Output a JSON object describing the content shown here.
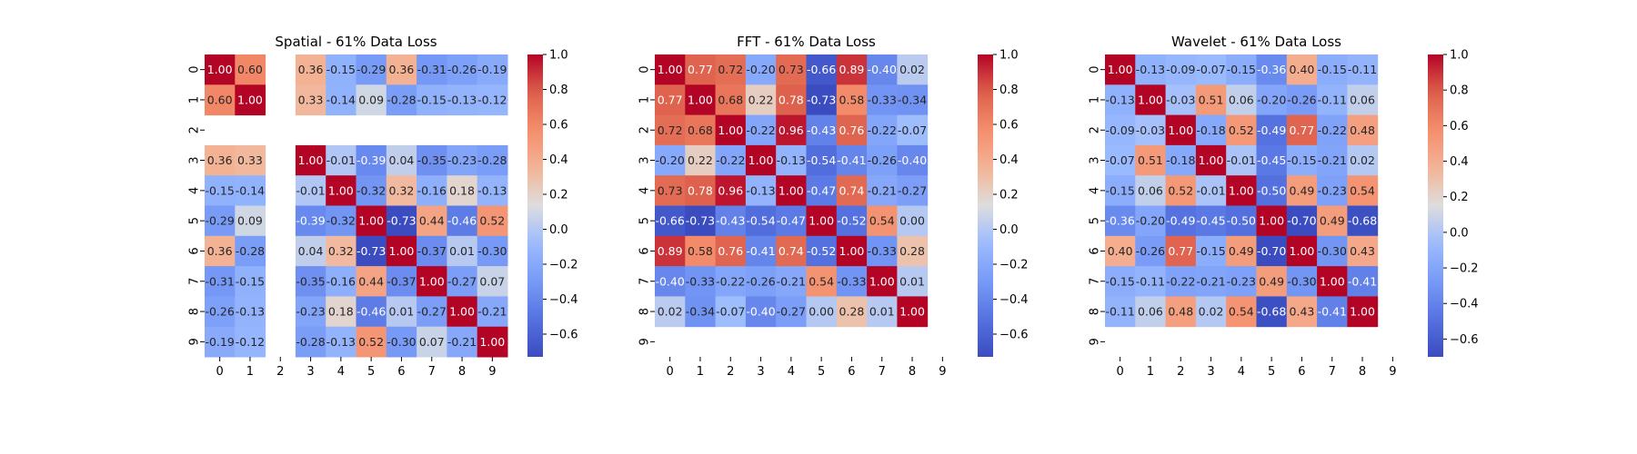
{
  "chart_data": [
    {
      "type": "heatmap",
      "title": "Spatial - 61% Data Loss",
      "x_ticks": [
        "0",
        "1",
        "2",
        "3",
        "4",
        "5",
        "6",
        "7",
        "8",
        "9"
      ],
      "y_ticks": [
        "0",
        "1",
        "2",
        "3",
        "4",
        "5",
        "6",
        "7",
        "8",
        "9"
      ],
      "colormap": "coolwarm",
      "vmin": -0.73,
      "vmax": 1.0,
      "colorbar_ticks": [
        1.0,
        0.8,
        0.6,
        0.4,
        0.2,
        0.0,
        -0.2,
        -0.4,
        -0.6
      ],
      "matrix": [
        [
          1.0,
          0.6,
          null,
          0.36,
          -0.15,
          -0.29,
          0.36,
          -0.31,
          -0.26,
          -0.19
        ],
        [
          0.6,
          1.0,
          null,
          0.33,
          -0.14,
          0.09,
          -0.28,
          -0.15,
          -0.13,
          -0.12
        ],
        [
          null,
          null,
          null,
          null,
          null,
          null,
          null,
          null,
          null,
          null
        ],
        [
          0.36,
          0.33,
          null,
          1.0,
          -0.01,
          -0.39,
          0.04,
          -0.35,
          -0.23,
          -0.28
        ],
        [
          -0.15,
          -0.14,
          null,
          -0.01,
          1.0,
          -0.32,
          0.32,
          -0.16,
          0.18,
          -0.13
        ],
        [
          -0.29,
          0.09,
          null,
          -0.39,
          -0.32,
          1.0,
          -0.73,
          0.44,
          -0.46,
          0.52
        ],
        [
          0.36,
          -0.28,
          null,
          0.04,
          0.32,
          -0.73,
          1.0,
          -0.37,
          0.01,
          -0.3
        ],
        [
          -0.31,
          -0.15,
          null,
          -0.35,
          -0.16,
          0.44,
          -0.37,
          1.0,
          -0.27,
          0.07
        ],
        [
          -0.26,
          -0.13,
          null,
          -0.23,
          0.18,
          -0.46,
          0.01,
          -0.27,
          1.0,
          -0.21
        ],
        [
          -0.19,
          -0.12,
          null,
          -0.28,
          -0.13,
          0.52,
          -0.3,
          0.07,
          -0.21,
          1.0
        ]
      ]
    },
    {
      "type": "heatmap",
      "title": "FFT - 61% Data Loss",
      "x_ticks": [
        "0",
        "1",
        "2",
        "3",
        "4",
        "5",
        "6",
        "7",
        "8",
        "9"
      ],
      "y_ticks": [
        "0",
        "1",
        "2",
        "3",
        "4",
        "5",
        "6",
        "7",
        "8",
        "9"
      ],
      "colormap": "coolwarm",
      "vmin": -0.73,
      "vmax": 1.0,
      "colorbar_ticks": [
        1.0,
        0.8,
        0.6,
        0.4,
        0.2,
        0.0,
        -0.2,
        -0.4,
        -0.6
      ],
      "matrix": [
        [
          1.0,
          0.77,
          0.72,
          -0.2,
          0.73,
          -0.66,
          0.89,
          -0.4,
          0.02,
          null
        ],
        [
          0.77,
          1.0,
          0.68,
          0.22,
          0.78,
          -0.73,
          0.58,
          -0.33,
          -0.34,
          null
        ],
        [
          0.72,
          0.68,
          1.0,
          -0.22,
          0.96,
          -0.43,
          0.76,
          -0.22,
          -0.07,
          null
        ],
        [
          -0.2,
          0.22,
          -0.22,
          1.0,
          -0.13,
          -0.54,
          -0.41,
          -0.26,
          -0.4,
          null
        ],
        [
          0.73,
          0.78,
          0.96,
          -0.13,
          1.0,
          -0.47,
          0.74,
          -0.21,
          -0.27,
          null
        ],
        [
          -0.66,
          -0.73,
          -0.43,
          -0.54,
          -0.47,
          1.0,
          -0.52,
          0.54,
          0.0,
          null
        ],
        [
          0.89,
          0.58,
          0.76,
          -0.41,
          0.74,
          -0.52,
          1.0,
          -0.33,
          0.28,
          null
        ],
        [
          -0.4,
          -0.33,
          -0.22,
          -0.26,
          -0.21,
          0.54,
          -0.33,
          1.0,
          0.01,
          null
        ],
        [
          0.02,
          -0.34,
          -0.07,
          -0.4,
          -0.27,
          0.0,
          0.28,
          0.01,
          1.0,
          null
        ],
        [
          null,
          null,
          null,
          null,
          null,
          null,
          null,
          null,
          null,
          null
        ]
      ]
    },
    {
      "type": "heatmap",
      "title": "Wavelet - 61% Data Loss",
      "x_ticks": [
        "0",
        "1",
        "2",
        "3",
        "4",
        "5",
        "6",
        "7",
        "8",
        "9"
      ],
      "y_ticks": [
        "0",
        "1",
        "2",
        "3",
        "4",
        "5",
        "6",
        "7",
        "8",
        "9"
      ],
      "colormap": "coolwarm",
      "vmin": -0.7,
      "vmax": 1.0,
      "colorbar_ticks": [
        1.0,
        0.8,
        0.6,
        0.4,
        0.2,
        0.0,
        -0.2,
        -0.4,
        -0.6
      ],
      "matrix": [
        [
          1.0,
          -0.13,
          -0.09,
          -0.07,
          -0.15,
          -0.36,
          0.4,
          -0.15,
          -0.11,
          null
        ],
        [
          -0.13,
          1.0,
          -0.03,
          0.51,
          0.06,
          -0.2,
          -0.26,
          -0.11,
          0.06,
          null
        ],
        [
          -0.09,
          -0.03,
          1.0,
          -0.18,
          0.52,
          -0.49,
          0.77,
          -0.22,
          0.48,
          null
        ],
        [
          -0.07,
          0.51,
          -0.18,
          1.0,
          -0.01,
          -0.45,
          -0.15,
          -0.21,
          0.02,
          null
        ],
        [
          -0.15,
          0.06,
          0.52,
          -0.01,
          1.0,
          -0.5,
          0.49,
          -0.23,
          0.54,
          null
        ],
        [
          -0.36,
          -0.2,
          -0.49,
          -0.45,
          -0.5,
          1.0,
          -0.7,
          0.49,
          -0.68,
          null
        ],
        [
          0.4,
          -0.26,
          0.77,
          -0.15,
          0.49,
          -0.7,
          1.0,
          -0.3,
          0.43,
          null
        ],
        [
          -0.15,
          -0.11,
          -0.22,
          -0.21,
          -0.23,
          0.49,
          -0.3,
          1.0,
          -0.41,
          null
        ],
        [
          -0.11,
          0.06,
          0.48,
          0.02,
          0.54,
          -0.68,
          0.43,
          -0.41,
          1.0,
          null
        ],
        [
          null,
          null,
          null,
          null,
          null,
          null,
          null,
          null,
          null,
          null
        ]
      ]
    }
  ]
}
